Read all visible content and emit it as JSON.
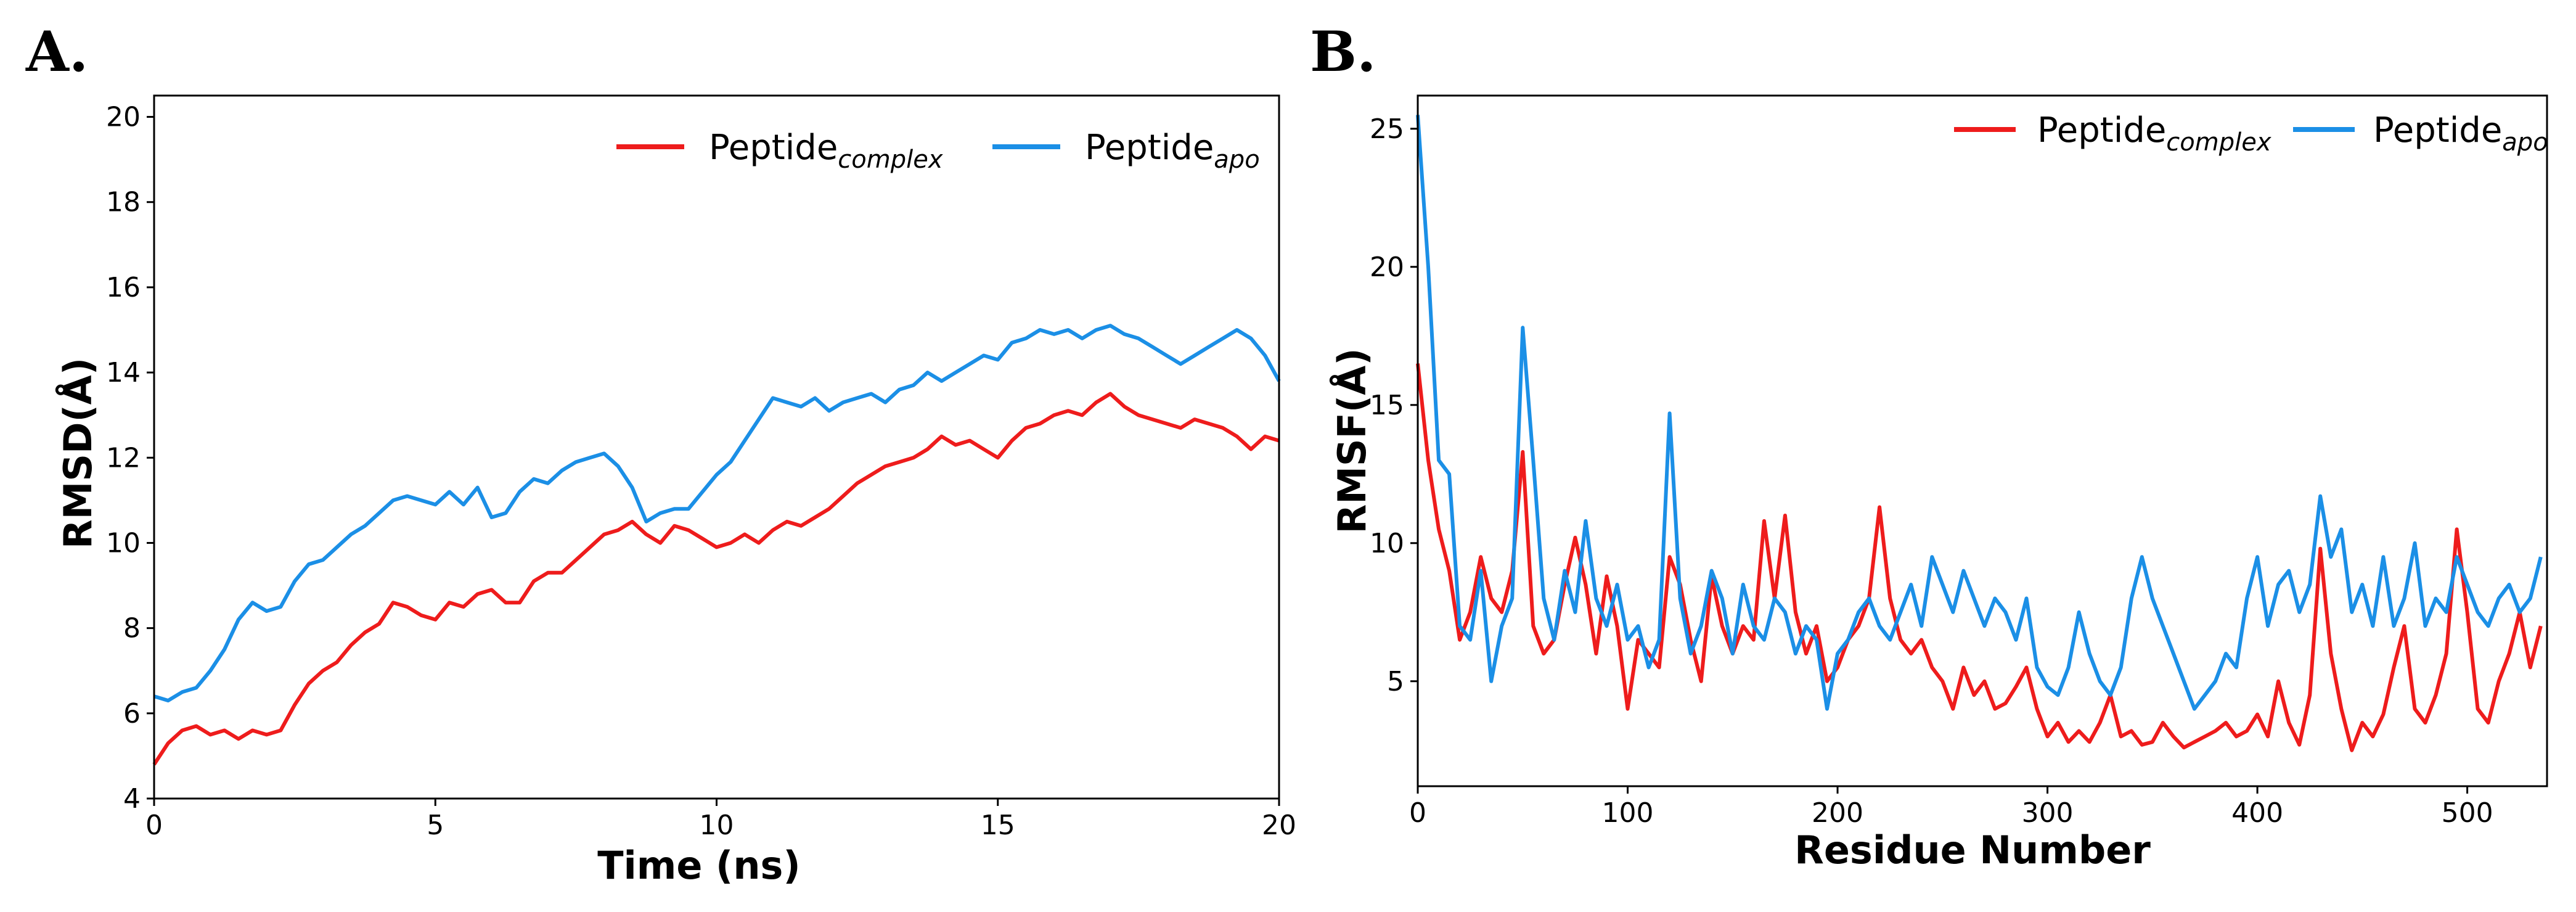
{
  "panels": [
    {
      "label": "A.",
      "chart_data": {
        "type": "line",
        "title": "",
        "xlabel": "Time (ns)",
        "ylabel": "RMSD(Å)",
        "xlim": [
          0,
          20
        ],
        "ylim": [
          4,
          20.5
        ],
        "xticks": [
          0,
          5,
          10,
          15,
          20
        ],
        "yticks": [
          4,
          6,
          8,
          10,
          12,
          14,
          16,
          18,
          20
        ],
        "legend_position": "top-right",
        "series": [
          {
            "name": "Peptide",
            "subscript": "complex",
            "color": "#ee1c1c",
            "x": [
              0,
              0.25,
              0.5,
              0.75,
              1.0,
              1.25,
              1.5,
              1.75,
              2.0,
              2.25,
              2.5,
              2.75,
              3.0,
              3.25,
              3.5,
              3.75,
              4.0,
              4.25,
              4.5,
              4.75,
              5.0,
              5.25,
              5.5,
              5.75,
              6.0,
              6.25,
              6.5,
              6.75,
              7.0,
              7.25,
              7.5,
              7.75,
              8.0,
              8.25,
              8.5,
              8.75,
              9.0,
              9.25,
              9.5,
              9.75,
              10.0,
              10.25,
              10.5,
              10.75,
              11.0,
              11.25,
              11.5,
              11.75,
              12.0,
              12.25,
              12.5,
              12.75,
              13.0,
              13.25,
              13.5,
              13.75,
              14.0,
              14.25,
              14.5,
              14.75,
              15.0,
              15.25,
              15.5,
              15.75,
              16.0,
              16.25,
              16.5,
              16.75,
              17.0,
              17.25,
              17.5,
              17.75,
              18.0,
              18.25,
              18.5,
              18.75,
              19.0,
              19.25,
              19.5,
              19.75,
              20.0
            ],
            "values": [
              4.8,
              5.3,
              5.6,
              5.7,
              5.5,
              5.6,
              5.4,
              5.6,
              5.5,
              5.6,
              6.2,
              6.7,
              7.0,
              7.2,
              7.6,
              7.9,
              8.1,
              8.6,
              8.5,
              8.3,
              8.2,
              8.6,
              8.5,
              8.8,
              8.9,
              8.6,
              8.6,
              9.1,
              9.3,
              9.3,
              9.6,
              9.9,
              10.2,
              10.3,
              10.5,
              10.2,
              10.0,
              10.4,
              10.3,
              10.1,
              9.9,
              10.0,
              10.2,
              10.0,
              10.3,
              10.5,
              10.4,
              10.6,
              10.8,
              11.1,
              11.4,
              11.6,
              11.8,
              11.9,
              12.0,
              12.2,
              12.5,
              12.3,
              12.4,
              12.2,
              12.0,
              12.4,
              12.7,
              12.8,
              13.0,
              13.1,
              13.0,
              13.3,
              13.5,
              13.2,
              13.0,
              12.9,
              12.8,
              12.7,
              12.9,
              12.8,
              12.7,
              12.5,
              12.2,
              12.5,
              12.4
            ]
          },
          {
            "name": "Peptide",
            "subscript": "apo",
            "color": "#1b8fe6",
            "x": [
              0,
              0.25,
              0.5,
              0.75,
              1.0,
              1.25,
              1.5,
              1.75,
              2.0,
              2.25,
              2.5,
              2.75,
              3.0,
              3.25,
              3.5,
              3.75,
              4.0,
              4.25,
              4.5,
              4.75,
              5.0,
              5.25,
              5.5,
              5.75,
              6.0,
              6.25,
              6.5,
              6.75,
              7.0,
              7.25,
              7.5,
              7.75,
              8.0,
              8.25,
              8.5,
              8.75,
              9.0,
              9.25,
              9.5,
              9.75,
              10.0,
              10.25,
              10.5,
              10.75,
              11.0,
              11.25,
              11.5,
              11.75,
              12.0,
              12.25,
              12.5,
              12.75,
              13.0,
              13.25,
              13.5,
              13.75,
              14.0,
              14.25,
              14.5,
              14.75,
              15.0,
              15.25,
              15.5,
              15.75,
              16.0,
              16.25,
              16.5,
              16.75,
              17.0,
              17.25,
              17.5,
              17.75,
              18.0,
              18.25,
              18.5,
              18.75,
              19.0,
              19.25,
              19.5,
              19.75,
              20.0
            ],
            "values": [
              6.4,
              6.3,
              6.5,
              6.6,
              7.0,
              7.5,
              8.2,
              8.6,
              8.4,
              8.5,
              9.1,
              9.5,
              9.6,
              9.9,
              10.2,
              10.4,
              10.7,
              11.0,
              11.1,
              11.0,
              10.9,
              11.2,
              10.9,
              11.3,
              10.6,
              10.7,
              11.2,
              11.5,
              11.4,
              11.7,
              11.9,
              12.0,
              12.1,
              11.8,
              11.3,
              10.5,
              10.7,
              10.8,
              10.8,
              11.2,
              11.6,
              11.9,
              12.4,
              12.9,
              13.4,
              13.3,
              13.2,
              13.4,
              13.1,
              13.3,
              13.4,
              13.5,
              13.3,
              13.6,
              13.7,
              14.0,
              13.8,
              14.0,
              14.2,
              14.4,
              14.3,
              14.7,
              14.8,
              15.0,
              14.9,
              15.0,
              14.8,
              15.0,
              15.1,
              14.9,
              14.8,
              14.6,
              14.4,
              14.2,
              14.4,
              14.6,
              14.8,
              15.0,
              14.8,
              14.4,
              13.8
            ]
          }
        ]
      }
    },
    {
      "label": "B.",
      "chart_data": {
        "type": "line",
        "title": "",
        "xlabel": "Residue Number",
        "ylabel": "RMSF(Å)",
        "xlim": [
          0,
          538
        ],
        "ylim": [
          1.2,
          26.2
        ],
        "xticks": [
          0,
          100,
          200,
          300,
          400,
          500
        ],
        "yticks": [
          5,
          10,
          15,
          20,
          25
        ],
        "legend_position": "top-right",
        "series": [
          {
            "name": "Peptide",
            "subscript": "complex",
            "color": "#ee1c1c",
            "x": [
              0,
              5,
              10,
              15,
              20,
              25,
              30,
              35,
              40,
              45,
              50,
              55,
              60,
              65,
              70,
              75,
              80,
              85,
              90,
              95,
              100,
              105,
              110,
              115,
              120,
              125,
              130,
              135,
              140,
              145,
              150,
              155,
              160,
              165,
              170,
              175,
              180,
              185,
              190,
              195,
              200,
              205,
              210,
              215,
              220,
              225,
              230,
              235,
              240,
              245,
              250,
              255,
              260,
              265,
              270,
              275,
              280,
              285,
              290,
              295,
              300,
              305,
              310,
              315,
              320,
              325,
              330,
              335,
              340,
              345,
              350,
              355,
              360,
              365,
              370,
              375,
              380,
              385,
              390,
              395,
              400,
              405,
              410,
              415,
              420,
              425,
              430,
              435,
              440,
              445,
              450,
              455,
              460,
              465,
              470,
              475,
              480,
              485,
              490,
              495,
              500,
              505,
              510,
              515,
              520,
              525,
              530,
              535
            ],
            "values": [
              16.5,
              13.0,
              10.5,
              9.0,
              6.5,
              7.5,
              9.5,
              8.0,
              7.5,
              9.0,
              13.3,
              7.0,
              6.0,
              6.5,
              8.5,
              10.2,
              8.5,
              6.0,
              8.8,
              7.0,
              4.0,
              6.5,
              6.0,
              5.5,
              9.5,
              8.5,
              6.5,
              5.0,
              8.8,
              7.0,
              6.0,
              7.0,
              6.5,
              10.8,
              8.0,
              11.0,
              7.5,
              6.0,
              7.0,
              5.0,
              5.5,
              6.5,
              7.0,
              8.0,
              11.3,
              8.0,
              6.5,
              6.0,
              6.5,
              5.5,
              5.0,
              4.0,
              5.5,
              4.5,
              5.0,
              4.0,
              4.2,
              4.8,
              5.5,
              4.0,
              3.0,
              3.5,
              2.8,
              3.2,
              2.8,
              3.5,
              4.5,
              3.0,
              3.2,
              2.7,
              2.8,
              3.5,
              3.0,
              2.6,
              2.8,
              3.0,
              3.2,
              3.5,
              3.0,
              3.2,
              3.8,
              3.0,
              5.0,
              3.5,
              2.7,
              4.5,
              9.8,
              6.0,
              4.0,
              2.5,
              3.5,
              3.0,
              3.8,
              5.5,
              7.0,
              4.0,
              3.5,
              4.5,
              6.0,
              10.5,
              7.5,
              4.0,
              3.5,
              5.0,
              6.0,
              7.5,
              5.5,
              7.0
            ]
          },
          {
            "name": "Peptide",
            "subscript": "apo",
            "color": "#1b8fe6",
            "x": [
              0,
              5,
              10,
              15,
              20,
              25,
              30,
              35,
              40,
              45,
              50,
              55,
              60,
              65,
              70,
              75,
              80,
              85,
              90,
              95,
              100,
              105,
              110,
              115,
              120,
              125,
              130,
              135,
              140,
              145,
              150,
              155,
              160,
              165,
              170,
              175,
              180,
              185,
              190,
              195,
              200,
              205,
              210,
              215,
              220,
              225,
              230,
              235,
              240,
              245,
              250,
              255,
              260,
              265,
              270,
              275,
              280,
              285,
              290,
              295,
              300,
              305,
              310,
              315,
              320,
              325,
              330,
              335,
              340,
              345,
              350,
              355,
              360,
              365,
              370,
              375,
              380,
              385,
              390,
              395,
              400,
              405,
              410,
              415,
              420,
              425,
              430,
              435,
              440,
              445,
              450,
              455,
              460,
              465,
              470,
              475,
              480,
              485,
              490,
              495,
              500,
              505,
              510,
              515,
              520,
              525,
              530,
              535
            ],
            "values": [
              25.5,
              20.0,
              13.0,
              12.5,
              7.0,
              6.5,
              9.0,
              5.0,
              7.0,
              8.0,
              17.8,
              13.0,
              8.0,
              6.5,
              9.0,
              7.5,
              10.8,
              8.0,
              7.0,
              8.5,
              6.5,
              7.0,
              5.5,
              6.5,
              14.7,
              8.0,
              6.0,
              7.0,
              9.0,
              8.0,
              6.0,
              8.5,
              7.0,
              6.5,
              8.0,
              7.5,
              6.0,
              7.0,
              6.5,
              4.0,
              6.0,
              6.5,
              7.5,
              8.0,
              7.0,
              6.5,
              7.5,
              8.5,
              7.0,
              9.5,
              8.5,
              7.5,
              9.0,
              8.0,
              7.0,
              8.0,
              7.5,
              6.5,
              8.0,
              5.5,
              4.8,
              4.5,
              5.5,
              7.5,
              6.0,
              5.0,
              4.5,
              5.5,
              8.0,
              9.5,
              8.0,
              7.0,
              6.0,
              5.0,
              4.0,
              4.5,
              5.0,
              6.0,
              5.5,
              8.0,
              9.5,
              7.0,
              8.5,
              9.0,
              7.5,
              8.5,
              11.7,
              9.5,
              10.5,
              7.5,
              8.5,
              7.0,
              9.5,
              7.0,
              8.0,
              10.0,
              7.0,
              8.0,
              7.5,
              9.5,
              8.5,
              7.5,
              7.0,
              8.0,
              8.5,
              7.5,
              8.0,
              9.5
            ]
          }
        ]
      }
    }
  ]
}
